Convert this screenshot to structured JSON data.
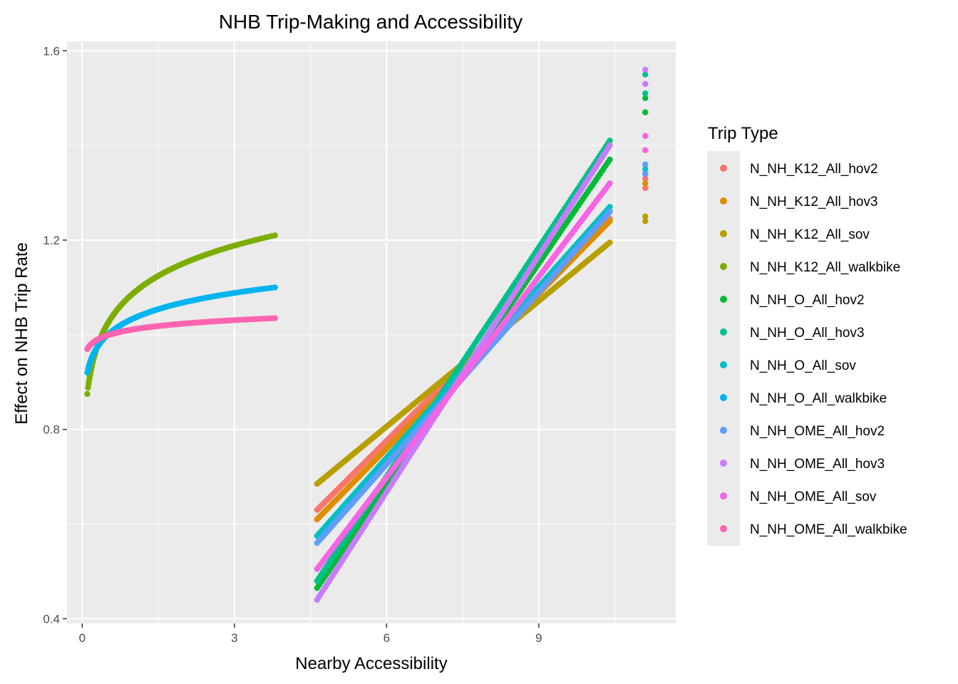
{
  "chart_data": {
    "type": "scatter",
    "title": "NHB Trip-Making and Accessibility",
    "xlabel": "Nearby Accessibility",
    "ylabel": "Effect on NHB Trip Rate",
    "xlim": [
      -0.3,
      11.7
    ],
    "ylim": [
      0.39,
      1.62
    ],
    "xticks": [
      0,
      3,
      6,
      9
    ],
    "xtick_labels": [
      "0",
      "3",
      "6",
      "9"
    ],
    "yticks": [
      0.4,
      0.8,
      1.2,
      1.6
    ],
    "ytick_labels": [
      "0.4",
      "0.8",
      "1.2",
      "1.6"
    ],
    "grid": true,
    "panel_background": "#ebebeb",
    "legend_position": "right",
    "legend_title": "Trip Type",
    "series": [
      {
        "name": "N_NH_K12_All_hov2",
        "color": "#F8766D",
        "segments": [
          [
            4.63,
            0.63,
            10.4,
            1.245
          ]
        ],
        "outliers": [
          [
            11.1,
            1.31
          ],
          [
            11.1,
            1.33
          ]
        ]
      },
      {
        "name": "N_NH_K12_All_hov3",
        "color": "#DE8C00",
        "segments": [
          [
            4.63,
            0.61,
            10.4,
            1.24
          ]
        ],
        "outliers": [
          [
            11.1,
            1.32
          ],
          [
            11.1,
            1.34
          ]
        ]
      },
      {
        "name": "N_NH_K12_All_sov",
        "color": "#B79F00",
        "segments": [
          [
            4.63,
            0.685,
            10.4,
            1.195
          ]
        ],
        "outliers": [
          [
            11.1,
            1.24
          ],
          [
            11.1,
            1.25
          ]
        ]
      },
      {
        "name": "N_NH_K12_All_walkbike",
        "color": "#7CAE00",
        "segments": [],
        "curves": [
          [
            0.1,
            3.8,
            0.875,
            1.21
          ]
        ]
      },
      {
        "name": "N_NH_O_All_hov2",
        "color": "#00BA38",
        "segments": [
          [
            4.63,
            0.465,
            10.4,
            1.37
          ]
        ],
        "outliers": [
          [
            11.1,
            1.47
          ],
          [
            11.1,
            1.5
          ]
        ]
      },
      {
        "name": "N_NH_O_All_hov3",
        "color": "#00C08B",
        "segments": [
          [
            4.63,
            0.48,
            10.4,
            1.41
          ]
        ],
        "outliers": [
          [
            11.1,
            1.51
          ],
          [
            11.1,
            1.55
          ]
        ]
      },
      {
        "name": "N_NH_O_All_sov",
        "color": "#00BFC4",
        "segments": [
          [
            4.63,
            0.575,
            10.4,
            1.27
          ]
        ],
        "outliers": [
          [
            11.1,
            1.34
          ],
          [
            11.1,
            1.35
          ]
        ]
      },
      {
        "name": "N_NH_O_All_walkbike",
        "color": "#00B4F0",
        "segments": [],
        "curves": [
          [
            0.1,
            3.8,
            0.92,
            1.1
          ]
        ]
      },
      {
        "name": "N_NH_OME_All_hov2",
        "color": "#619CFF",
        "segments": [
          [
            4.63,
            0.56,
            10.4,
            1.26
          ]
        ],
        "outliers": [
          [
            11.1,
            1.34
          ],
          [
            11.1,
            1.36
          ]
        ]
      },
      {
        "name": "N_NH_OME_All_hov3",
        "color": "#C77CFF",
        "segments": [
          [
            4.63,
            0.44,
            10.4,
            1.4
          ]
        ],
        "outliers": [
          [
            11.1,
            1.53
          ],
          [
            11.1,
            1.56
          ]
        ]
      },
      {
        "name": "N_NH_OME_All_sov",
        "color": "#F564E3",
        "segments": [
          [
            4.63,
            0.505,
            10.4,
            1.32
          ]
        ],
        "outliers": [
          [
            11.1,
            1.39
          ],
          [
            11.1,
            1.42
          ]
        ]
      },
      {
        "name": "N_NH_OME_All_walkbike",
        "color": "#FF64B0",
        "segments": [],
        "curves": [
          [
            0.1,
            3.8,
            0.97,
            1.035
          ]
        ]
      }
    ]
  }
}
